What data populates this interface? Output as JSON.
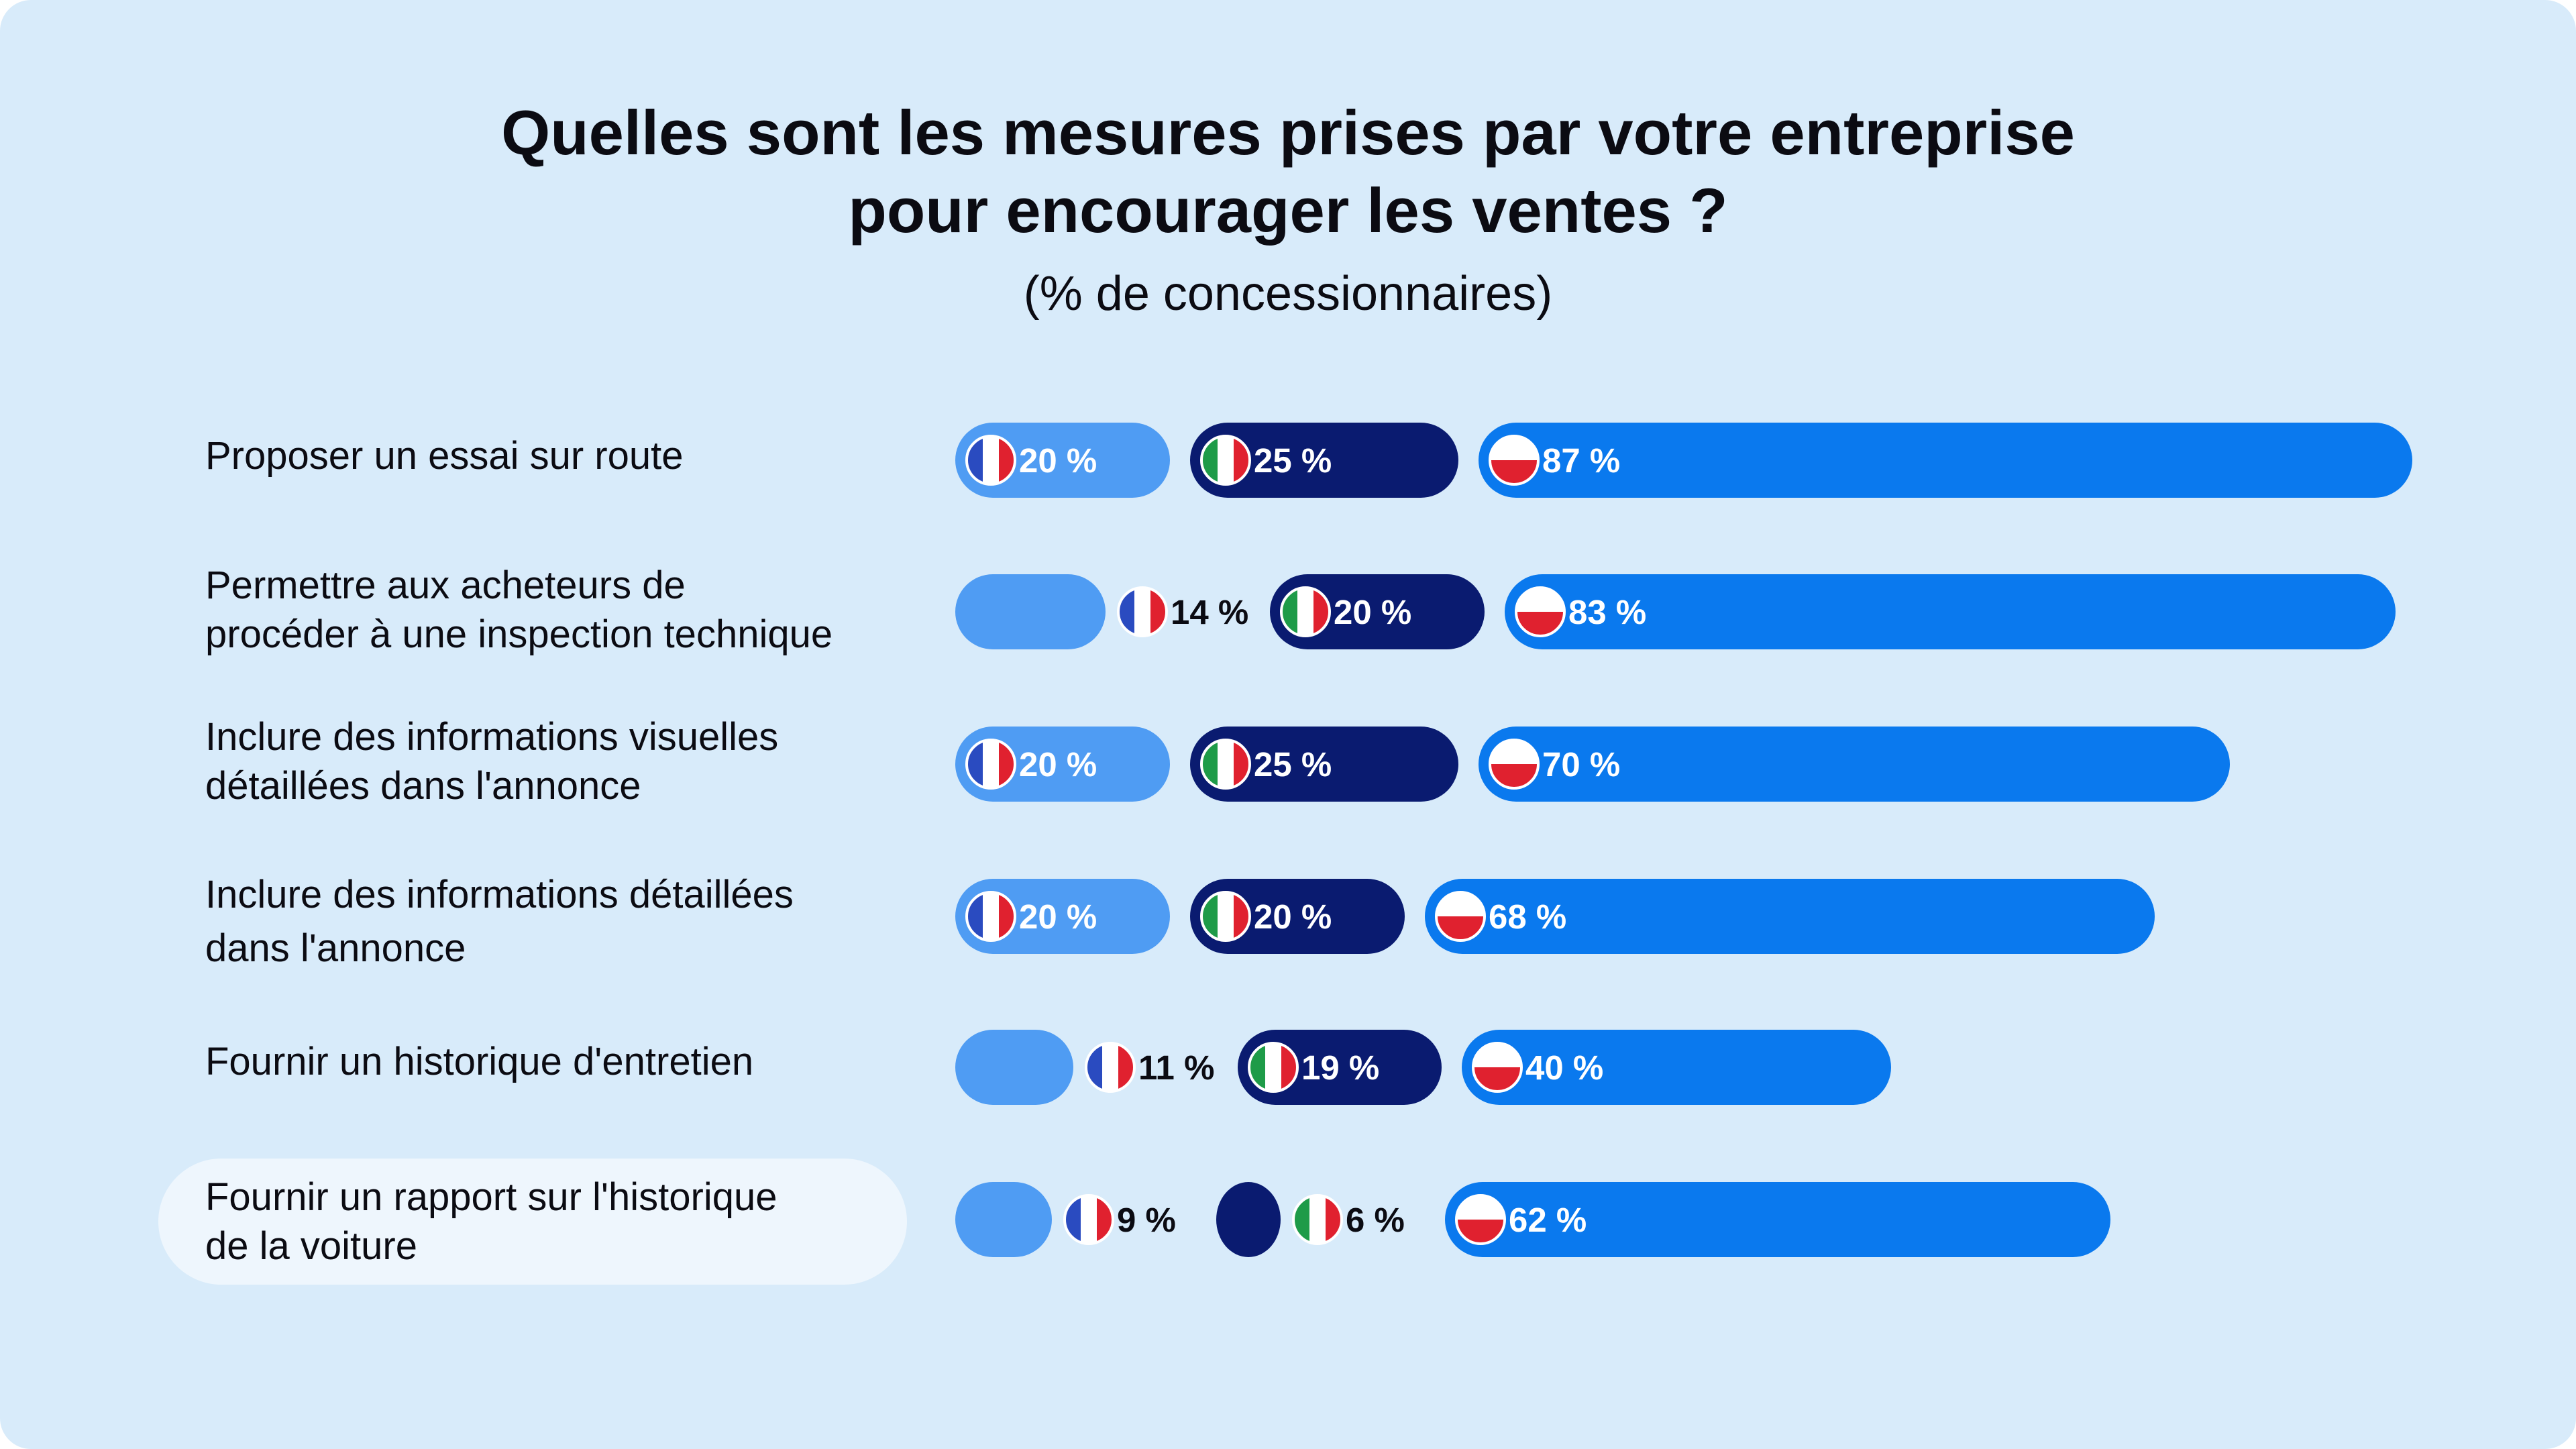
{
  "title_line1": "Quelles sont les mesures prises par votre entreprise",
  "title_line2": "pour encourager les ventes ?",
  "subtitle": "(% de concessionnaires)",
  "colors": {
    "background": "#d8ebfa",
    "france_bar": "#4f9cf3",
    "italy_bar": "#0a1b70",
    "poland_bar": "#0a79ee",
    "highlight": "#eef6fd",
    "flag_blue": "#2a4bc0",
    "flag_red": "#e0212f",
    "flag_green": "#1e9b48",
    "flag_white": "#ffffff"
  },
  "chart_data": {
    "type": "bar",
    "orientation": "horizontal",
    "title": "Quelles sont les mesures prises par votre entreprise pour encourager les ventes ?",
    "subtitle": "(% de concessionnaires)",
    "unit": "%",
    "categories": [
      "Proposer un essai sur route",
      "Permettre aux acheteurs de procéder à une inspection technique",
      "Inclure des informations visuelles détaillées dans l'annonce",
      "Inclure des informations détaillées dans l'annonce",
      "Fournir un historique d'entretien",
      "Fournir un rapport sur l'historique de la voiture"
    ],
    "series": [
      {
        "name": "France",
        "flag": "france-flag-icon",
        "values": [
          20,
          14,
          20,
          20,
          11,
          9
        ],
        "labels": [
          "20 %",
          "14 %",
          "20 %",
          "20 %",
          "11 %",
          "9 %"
        ]
      },
      {
        "name": "Italie",
        "flag": "italy-flag-icon",
        "values": [
          25,
          20,
          25,
          20,
          19,
          6
        ],
        "labels": [
          "25 %",
          "20 %",
          "25 %",
          "20 %",
          "19 %",
          "6 %"
        ]
      },
      {
        "name": "Pologne",
        "flag": "poland-flag-icon",
        "values": [
          87,
          83,
          70,
          68,
          40,
          62
        ],
        "labels": [
          "87 %",
          "83 %",
          "70 %",
          "68 %",
          "40 %",
          "62 %"
        ]
      }
    ],
    "highlighted_category": "Fournir un rapport sur l'historique de la voiture"
  },
  "rows": [
    {
      "label_lines": [
        "Proposer un essai sur route"
      ]
    },
    {
      "label_lines": [
        "Permettre aux acheteurs de",
        "procéder à une inspection technique"
      ]
    },
    {
      "label_lines": [
        "Inclure des informations visuelles",
        "détaillées dans l'annonce"
      ]
    },
    {
      "label_lines": [
        "Inclure des informations détaillées",
        "dans l'annonce"
      ]
    },
    {
      "label_lines": [
        "Fournir un historique d'entretien"
      ]
    },
    {
      "label_lines": [
        "Fournir un rapport sur l'historique",
        "de la voiture"
      ]
    }
  ]
}
